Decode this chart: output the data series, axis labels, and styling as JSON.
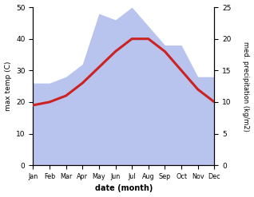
{
  "months": [
    "Jan",
    "Feb",
    "Mar",
    "Apr",
    "May",
    "Jun",
    "Jul",
    "Aug",
    "Sep",
    "Oct",
    "Nov",
    "Dec"
  ],
  "temperature": [
    19,
    20,
    22,
    26,
    31,
    36,
    40,
    40,
    36,
    30,
    24,
    20
  ],
  "precipitation": [
    13,
    13,
    14,
    16,
    24,
    23,
    25,
    22,
    19,
    19,
    14,
    14
  ],
  "temp_color": "#cc2222",
  "precip_fill_color": "#b8c4ee",
  "temp_ylim": [
    0,
    50
  ],
  "precip_ylim": [
    0,
    25
  ],
  "xlabel": "date (month)",
  "ylabel_left": "max temp (C)",
  "ylabel_right": "med. precipitation (kg/m2)",
  "bg_color": "#ffffff",
  "temp_yticks": [
    0,
    10,
    20,
    30,
    40,
    50
  ],
  "precip_yticks": [
    0,
    5,
    10,
    15,
    20,
    25
  ]
}
